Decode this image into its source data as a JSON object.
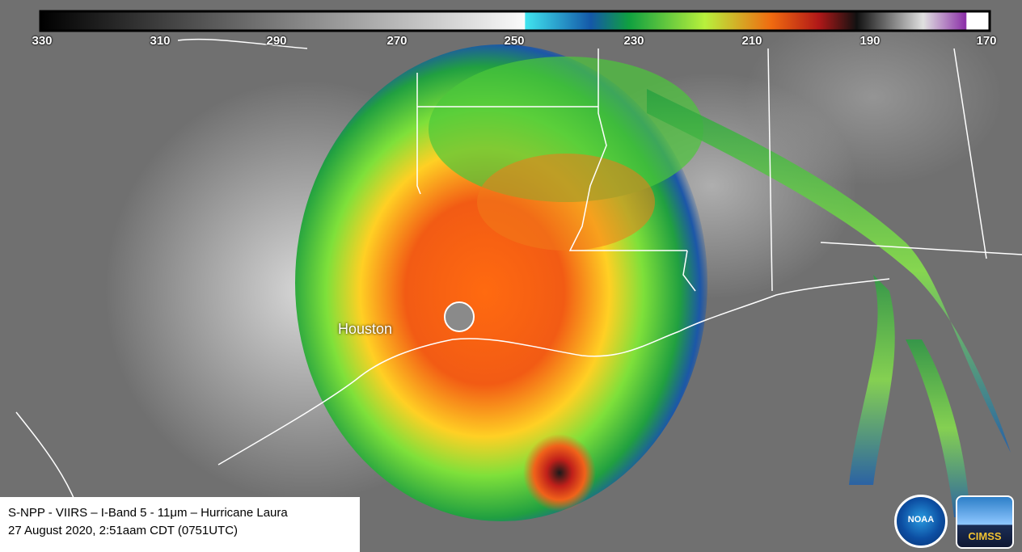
{
  "colorbar": {
    "tick_labels": [
      "330",
      "310",
      "290",
      "270",
      "250",
      "230",
      "210",
      "190",
      "170"
    ]
  },
  "map": {
    "city_label": "Houston"
  },
  "caption": {
    "line1": "S-NPP - VIIRS – I-Band 5 - 11μm – Hurricane Laura",
    "line2": "27 August 2020, 2:51aam CDT (0751UTC)"
  },
  "logos": {
    "noaa": "NOAA",
    "cimss": "CIMSS"
  }
}
